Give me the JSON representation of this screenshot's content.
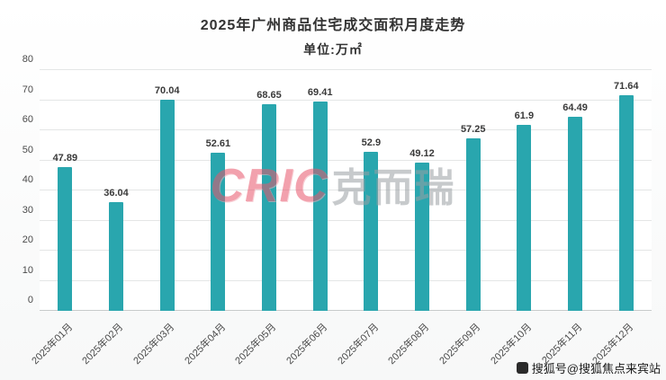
{
  "header": {
    "title": "2025年广州商品住宅成交面积月度走势",
    "subtitle": "单位:万㎡"
  },
  "chart_data": {
    "type": "bar",
    "title": "2025年广州商品住宅成交面积月度走势",
    "subtitle": "单位:万㎡",
    "categories": [
      "2025年01月",
      "2025年02月",
      "2025年03月",
      "2025年04月",
      "2025年05月",
      "2025年06月",
      "2025年07月",
      "2025年08月",
      "2025年09月",
      "2025年10月",
      "2025年11月",
      "2025年12月"
    ],
    "values": [
      47.89,
      36.04,
      70.04,
      52.61,
      68.65,
      69.41,
      52.9,
      49.12,
      57.25,
      61.9,
      64.49,
      71.64
    ],
    "xlabel": "",
    "ylabel": "",
    "ylim": [
      0,
      80
    ],
    "ytick_step": 10,
    "grid": true,
    "legend_position": "none",
    "bar_color": "#29a6ae"
  },
  "watermark": {
    "cric": "CRIC",
    "kerui": "克而瑞"
  },
  "footer": {
    "sohu_text": "搜狐号@搜狐焦点来宾站"
  }
}
